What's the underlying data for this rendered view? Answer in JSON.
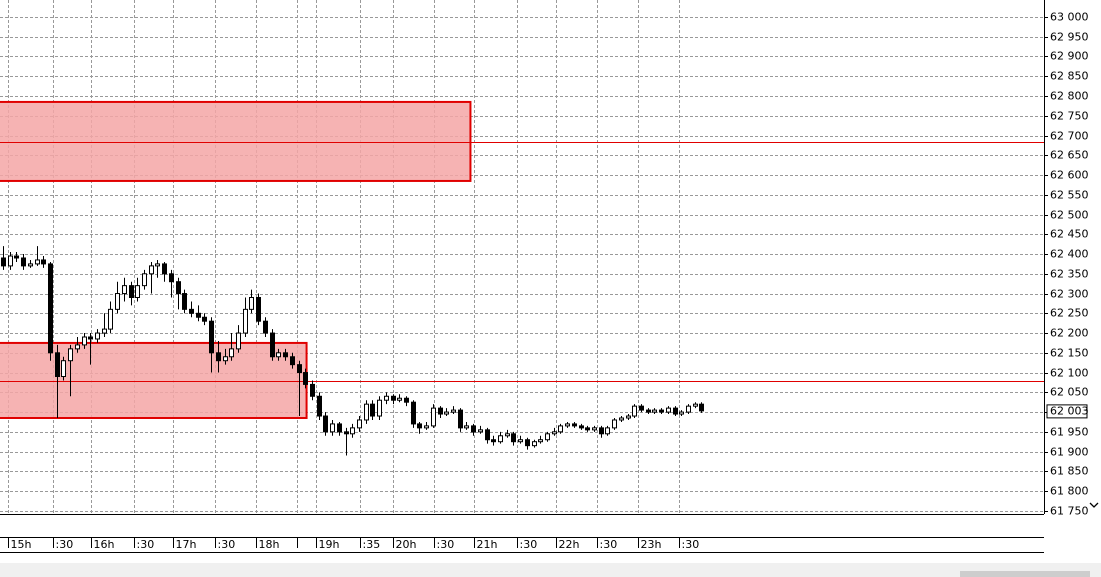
{
  "chart_data": {
    "type": "candlestick",
    "ylim": [
      61742,
      63043
    ],
    "yticks": [
      {
        "value": 61750,
        "label": "61 750"
      },
      {
        "value": 61800,
        "label": "61 800"
      },
      {
        "value": 61850,
        "label": "61 850"
      },
      {
        "value": 61900,
        "label": "61 900"
      },
      {
        "value": 61950,
        "label": "61 950"
      },
      {
        "value": 62000,
        "label": "62 000"
      },
      {
        "value": 62050,
        "label": "62 050"
      },
      {
        "value": 62100,
        "label": "62 100"
      },
      {
        "value": 62150,
        "label": "62 150"
      },
      {
        "value": 62200,
        "label": "62 200"
      },
      {
        "value": 62250,
        "label": "62 250"
      },
      {
        "value": 62300,
        "label": "62 300"
      },
      {
        "value": 62350,
        "label": "62 350"
      },
      {
        "value": 62400,
        "label": "62 400"
      },
      {
        "value": 62450,
        "label": "62 450"
      },
      {
        "value": 62500,
        "label": "62 500"
      },
      {
        "value": 62550,
        "label": "62 550"
      },
      {
        "value": 62600,
        "label": "62 600"
      },
      {
        "value": 62650,
        "label": "62 650"
      },
      {
        "value": 62700,
        "label": "62 700"
      },
      {
        "value": 62750,
        "label": "62 750"
      },
      {
        "value": 62800,
        "label": "62 800"
      },
      {
        "value": 62850,
        "label": "62 850"
      },
      {
        "value": 62900,
        "label": "62 900"
      },
      {
        "value": 62950,
        "label": "62 950"
      },
      {
        "value": 63000,
        "label": "63 000"
      }
    ],
    "xlim": [
      0,
      155
    ],
    "xticks": [
      {
        "value": 0.7,
        "label": "15h"
      },
      {
        "value": 7.4,
        "label": ":30"
      },
      {
        "value": 13.1,
        "label": "16h"
      },
      {
        "value": 19.5,
        "label": ":30"
      },
      {
        "value": 25.3,
        "label": "17h"
      },
      {
        "value": 31.5,
        "label": ":30"
      },
      {
        "value": 37.6,
        "label": "18h"
      },
      {
        "value": 43.8,
        "label": null
      },
      {
        "value": 46.6,
        "label": "19h"
      },
      {
        "value": 53.1,
        "label": ":35"
      },
      {
        "value": 58,
        "label": "20h"
      },
      {
        "value": 64.1,
        "label": ":30"
      },
      {
        "value": 70.2,
        "label": "21h"
      },
      {
        "value": 76.5,
        "label": ":30"
      },
      {
        "value": 82.4,
        "label": "22h"
      },
      {
        "value": 88.5,
        "label": ":30"
      },
      {
        "value": 94.6,
        "label": "23h"
      },
      {
        "value": 100.7,
        "label": ":30"
      }
    ],
    "grid": true,
    "up_color": "#ffffff",
    "down_color": "#000000",
    "candles": [
      [
        62390,
        62420,
        62360,
        62370
      ],
      [
        62370,
        62405,
        62360,
        62395
      ],
      [
        62395,
        62405,
        62380,
        62390
      ],
      [
        62390,
        62400,
        62360,
        62370
      ],
      [
        62370,
        62385,
        62365,
        62375
      ],
      [
        62375,
        62420,
        62370,
        62385
      ],
      [
        62385,
        62395,
        62365,
        62375
      ],
      [
        62375,
        62380,
        62130,
        62150
      ],
      [
        62150,
        62170,
        61985,
        62090
      ],
      [
        62090,
        62140,
        62080,
        62130
      ],
      [
        62130,
        62170,
        62040,
        62160
      ],
      [
        62160,
        62190,
        62150,
        62170
      ],
      [
        62170,
        62200,
        62160,
        62190
      ],
      [
        62190,
        62200,
        62120,
        62185
      ],
      [
        62185,
        62210,
        62175,
        62200
      ],
      [
        62200,
        62250,
        62190,
        62210
      ],
      [
        62210,
        62280,
        62200,
        62260
      ],
      [
        62260,
        62330,
        62250,
        62300
      ],
      [
        62300,
        62340,
        62280,
        62320
      ],
      [
        62320,
        62330,
        62270,
        62290
      ],
      [
        62290,
        62340,
        62280,
        62320
      ],
      [
        62320,
        62360,
        62310,
        62350
      ],
      [
        62350,
        62380,
        62300,
        62370
      ],
      [
        62370,
        62385,
        62340,
        62375
      ],
      [
        62375,
        62380,
        62330,
        62350
      ],
      [
        62350,
        62360,
        62290,
        62330
      ],
      [
        62330,
        62340,
        62260,
        62300
      ],
      [
        62300,
        62310,
        62250,
        62260
      ],
      [
        62260,
        62280,
        62240,
        62250
      ],
      [
        62250,
        62270,
        62230,
        62240
      ],
      [
        62240,
        62250,
        62220,
        62230
      ],
      [
        62230,
        62240,
        62100,
        62150
      ],
      [
        62150,
        62180,
        62100,
        62130
      ],
      [
        62130,
        62160,
        62120,
        62140
      ],
      [
        62140,
        62200,
        62130,
        62160
      ],
      [
        62160,
        62220,
        62150,
        62200
      ],
      [
        62200,
        62290,
        62190,
        62260
      ],
      [
        62260,
        62310,
        62250,
        62290
      ],
      [
        62290,
        62300,
        62220,
        62230
      ],
      [
        62230,
        62240,
        62190,
        62200
      ],
      [
        62200,
        62210,
        62130,
        62140
      ],
      [
        62140,
        62160,
        62130,
        62150
      ],
      [
        62150,
        62160,
        62130,
        62140
      ],
      [
        62140,
        62150,
        62110,
        62120
      ],
      [
        62120,
        62130,
        61990,
        62100
      ],
      [
        62100,
        62110,
        62060,
        62070
      ],
      [
        62070,
        62080,
        62030,
        62040
      ],
      [
        62040,
        62050,
        61980,
        61990
      ],
      [
        61990,
        62000,
        61940,
        61950
      ],
      [
        61950,
        61980,
        61940,
        61970
      ],
      [
        61970,
        61975,
        61940,
        61950
      ],
      [
        61950,
        61960,
        61890,
        61945
      ],
      [
        61945,
        61970,
        61935,
        61960
      ],
      [
        61960,
        61990,
        61950,
        61980
      ],
      [
        61980,
        62030,
        61970,
        62020
      ],
      [
        62020,
        62030,
        61980,
        61990
      ],
      [
        61990,
        62040,
        61980,
        62030
      ],
      [
        62030,
        62050,
        62020,
        62040
      ],
      [
        62040,
        62045,
        62020,
        62030
      ],
      [
        62030,
        62045,
        62025,
        62035
      ],
      [
        62035,
        62040,
        62015,
        62025
      ],
      [
        62025,
        62030,
        61960,
        61970
      ],
      [
        61970,
        61975,
        61945,
        61960
      ],
      [
        61960,
        61975,
        61955,
        61965
      ],
      [
        61965,
        62020,
        61960,
        62010
      ],
      [
        62010,
        62015,
        61985,
        61995
      ],
      [
        61995,
        62010,
        61990,
        62000
      ],
      [
        62000,
        62015,
        61995,
        62005
      ],
      [
        62005,
        62010,
        61950,
        61960
      ],
      [
        61960,
        61975,
        61955,
        61965
      ],
      [
        61965,
        61970,
        61940,
        61950
      ],
      [
        61950,
        61965,
        61945,
        61955
      ],
      [
        61955,
        61960,
        61920,
        61930
      ],
      [
        61930,
        61940,
        61915,
        61925
      ],
      [
        61925,
        61950,
        61920,
        61940
      ],
      [
        61940,
        61955,
        61935,
        61945
      ],
      [
        61945,
        61950,
        61915,
        61925
      ],
      [
        61925,
        61940,
        61920,
        61930
      ],
      [
        61930,
        61935,
        61905,
        61915
      ],
      [
        61915,
        61930,
        61910,
        61925
      ],
      [
        61925,
        61940,
        61920,
        61930
      ],
      [
        61930,
        61950,
        61925,
        61945
      ],
      [
        61945,
        61960,
        61940,
        61950
      ],
      [
        61950,
        61970,
        61945,
        61965
      ],
      [
        61965,
        61975,
        61960,
        61970
      ],
      [
        61970,
        61975,
        61960,
        61965
      ],
      [
        61965,
        61970,
        61955,
        61960
      ],
      [
        61960,
        61965,
        61950,
        61955
      ],
      [
        61955,
        61965,
        61950,
        61960
      ],
      [
        61960,
        61965,
        61935,
        61945
      ],
      [
        61945,
        61965,
        61940,
        61960
      ],
      [
        61960,
        61985,
        61955,
        61980
      ],
      [
        61980,
        61990,
        61975,
        61985
      ],
      [
        61985,
        61995,
        61980,
        61990
      ],
      [
        61990,
        62020,
        61985,
        62015
      ],
      [
        62015,
        62020,
        62000,
        62005
      ],
      [
        62005,
        62010,
        61995,
        62000
      ],
      [
        62000,
        62010,
        61995,
        62005
      ],
      [
        62005,
        62010,
        61995,
        62000
      ],
      [
        62000,
        62015,
        61995,
        62010
      ],
      [
        62010,
        62015,
        61990,
        61995
      ],
      [
        61995,
        62005,
        61990,
        62000
      ],
      [
        62000,
        62020,
        61995,
        62015
      ],
      [
        62015,
        62025,
        62010,
        62020
      ],
      [
        62020,
        62025,
        61998,
        62003
      ]
    ],
    "zones": [
      {
        "bottom": 62585,
        "top": 62785,
        "end": 69.6
      },
      {
        "bottom": 61985,
        "top": 62175,
        "end": 45.2
      }
    ],
    "zone_color": "#f4a6a6",
    "zone_border": "#e00000",
    "levels": [
      62684,
      62079
    ],
    "last_price": {
      "value": 62003,
      "label": "62 003"
    }
  }
}
